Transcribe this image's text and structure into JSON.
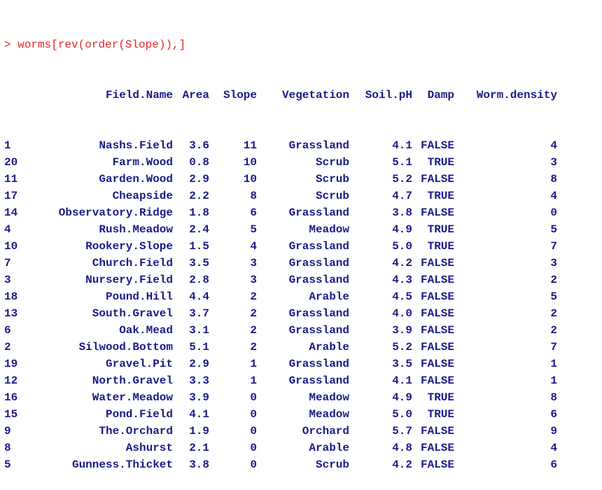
{
  "console": {
    "prompt_symbol": ">",
    "command": "worms[rev(order(Slope)),]",
    "columns": [
      "Field.Name",
      "Area",
      "Slope",
      "Vegetation",
      "Soil.pH",
      "Damp",
      "Worm.density"
    ],
    "rows": [
      [
        "1",
        "Nashs.Field",
        "3.6",
        "11",
        "Grassland",
        "4.1",
        "FALSE",
        "4"
      ],
      [
        "20",
        "Farm.Wood",
        "0.8",
        "10",
        "Scrub",
        "5.1",
        "TRUE",
        "3"
      ],
      [
        "11",
        "Garden.Wood",
        "2.9",
        "10",
        "Scrub",
        "5.2",
        "FALSE",
        "8"
      ],
      [
        "17",
        "Cheapside",
        "2.2",
        "8",
        "Scrub",
        "4.7",
        "TRUE",
        "4"
      ],
      [
        "14",
        "Observatory.Ridge",
        "1.8",
        "6",
        "Grassland",
        "3.8",
        "FALSE",
        "0"
      ],
      [
        "4",
        "Rush.Meadow",
        "2.4",
        "5",
        "Meadow",
        "4.9",
        "TRUE",
        "5"
      ],
      [
        "10",
        "Rookery.Slope",
        "1.5",
        "4",
        "Grassland",
        "5.0",
        "TRUE",
        "7"
      ],
      [
        "7",
        "Church.Field",
        "3.5",
        "3",
        "Grassland",
        "4.2",
        "FALSE",
        "3"
      ],
      [
        "3",
        "Nursery.Field",
        "2.8",
        "3",
        "Grassland",
        "4.3",
        "FALSE",
        "2"
      ],
      [
        "18",
        "Pound.Hill",
        "4.4",
        "2",
        "Arable",
        "4.5",
        "FALSE",
        "5"
      ],
      [
        "13",
        "South.Gravel",
        "3.7",
        "2",
        "Grassland",
        "4.0",
        "FALSE",
        "2"
      ],
      [
        "6",
        "Oak.Mead",
        "3.1",
        "2",
        "Grassland",
        "3.9",
        "FALSE",
        "2"
      ],
      [
        "2",
        "Silwood.Bottom",
        "5.1",
        "2",
        "Arable",
        "5.2",
        "FALSE",
        "7"
      ],
      [
        "19",
        "Gravel.Pit",
        "2.9",
        "1",
        "Grassland",
        "3.5",
        "FALSE",
        "1"
      ],
      [
        "12",
        "North.Gravel",
        "3.3",
        "1",
        "Grassland",
        "4.1",
        "FALSE",
        "1"
      ],
      [
        "16",
        "Water.Meadow",
        "3.9",
        "0",
        "Meadow",
        "4.9",
        "TRUE",
        "8"
      ],
      [
        "15",
        "Pond.Field",
        "4.1",
        "0",
        "Meadow",
        "5.0",
        "TRUE",
        "6"
      ],
      [
        "9",
        "The.Orchard",
        "1.9",
        "0",
        "Orchard",
        "5.7",
        "FALSE",
        "9"
      ],
      [
        "8",
        "Ashurst",
        "2.1",
        "0",
        "Arable",
        "4.8",
        "FALSE",
        "4"
      ],
      [
        "5",
        "Gunness.Thicket",
        "3.8",
        "0",
        "Scrub",
        "4.2",
        "FALSE",
        "6"
      ]
    ]
  },
  "colors": {
    "prompt": "#e02727",
    "output": "#1a1a8a",
    "background": "#ffffff"
  }
}
